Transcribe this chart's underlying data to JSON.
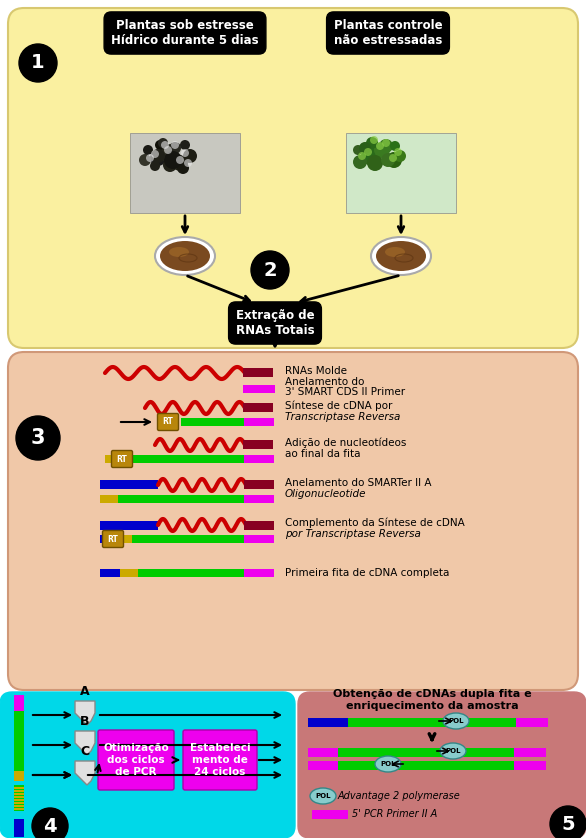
{
  "fig_width": 5.86,
  "fig_height": 8.38,
  "bg_color": "#ffffff",
  "section1_bg": "#faf0a0",
  "section3_bg": "#f0c8a8",
  "section4_bg": "#00d8e8",
  "section5_bg": "#c87878",
  "box1_label1": "Plantas sob estresse\nHídrico durante 5 dias",
  "box1_label2": "Plantas controle\nnão estressadas",
  "extract_label": "Extração de\nRNAs Totais",
  "rna1_label": "RNAs Molde",
  "rna2_label_1": "Anelamento do",
  "rna2_label_2": "3' SMART CDS II Primer",
  "rna3_label_1": "Síntese de cDNA por",
  "rna3_label_2": "Transcriptase Reversa",
  "rna4_label_1": "Adição de nucleotídeos",
  "rna4_label_2": "ao final da fita",
  "rna5_label_1": "Anelamento do SMARTer II A",
  "rna5_label_2": "Oligonucleotide",
  "rna6_label_1": "Complemento da Síntese de cDNA",
  "rna6_label_2": "por Transcriptase Reversa",
  "rna7_label": "Primeira fita de cDNA completa",
  "pcr_box1": "Otimização\ndos ciclos\nde PCR",
  "pcr_box2": "Estabeleci\nmento de\n24 ciclos",
  "sec5_title": "Obtenção de cDNAs dupla fita e\nenriquecimento da amostra",
  "legend5_1": "Advantage 2 polymerase",
  "legend5_2": "5' PCR Primer II A",
  "tube_labels": [
    "A",
    "B",
    "C"
  ],
  "color_red": "#cc0000",
  "color_darkred": "#880022",
  "color_green": "#00cc00",
  "color_blue": "#0000cc",
  "color_magenta": "#ee00ee",
  "color_yellow": "#ccaa00",
  "color_pol": "#88cccc",
  "color_rt": "#b8860b"
}
